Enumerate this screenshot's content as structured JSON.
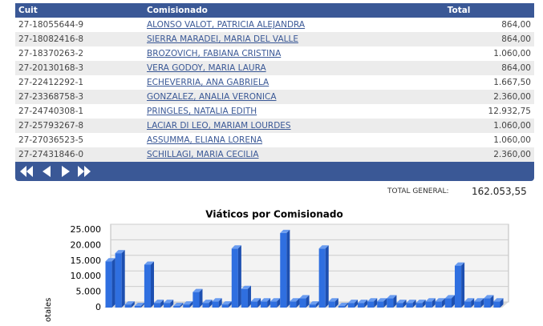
{
  "table": {
    "header": [
      "Cuit",
      "Comisionado",
      "Total"
    ],
    "rows": [
      [
        "27-18055644-9",
        "ALONSO VALOT, PATRICIA ALEJANDRA",
        "864,00"
      ],
      [
        "27-18082416-8",
        "SIERRA MARADEI, MARIA DEL VALLE",
        "864,00"
      ],
      [
        "27-18370263-2",
        "BROZOVICH, FABIANA CRISTINA",
        "1.060,00"
      ],
      [
        "27-20130168-3",
        "VERA GODOY, MARIA LAURA",
        "864,00"
      ],
      [
        "27-22412292-1",
        "ECHEVERRIA, ANA GABRIELA",
        "1.667,50"
      ],
      [
        "27-23368758-3",
        "GONZALEZ, ANALIA VERONICA",
        "2.360,00"
      ],
      [
        "27-24740308-1",
        "PRINGLES, NATALIA EDITH",
        "12.932,75"
      ],
      [
        "27-25793267-8",
        "LACIAR DI LEO, MARIAM LOURDES",
        "1.060,00"
      ],
      [
        "27-27036523-5",
        "ASSUMMA, ELIANA LORENA",
        "1.060,00"
      ],
      [
        "27-27431846-0",
        "SCHILLAGI, MARIA CECILIA",
        "2.360,00"
      ]
    ],
    "total_label": "TOTAL GENERAL:",
    "total_value": "162.053,55"
  },
  "chart_data": {
    "type": "bar3d",
    "title": "Viáticos por Comisionado",
    "y_label": "otales",
    "color": "#2f6fe0",
    "values": [
      14900,
      17500,
      1000,
      500,
      13800,
      1500,
      1500,
      500,
      1000,
      5000,
      1500,
      2000,
      1000,
      19000,
      6000,
      2000,
      2000,
      2000,
      24000,
      2000,
      3000,
      1000,
      19000,
      2000,
      500,
      1500,
      1500,
      2000,
      2000,
      3000,
      1500,
      1500,
      1500,
      2000,
      2000,
      3000,
      13500,
      2000,
      2000,
      3000,
      2000
    ],
    "ylim": [
      0,
      25000
    ],
    "yticks": [
      0,
      {
        "value": 5000,
        "label": "5.000"
      },
      {
        "value": 10000,
        "label": "10.000"
      },
      {
        "value": 15000,
        "label": "15.000"
      },
      {
        "value": 20000,
        "label": "20.000"
      },
      {
        "value": 25000,
        "label": "25.000"
      }
    ],
    "grid": true
  }
}
